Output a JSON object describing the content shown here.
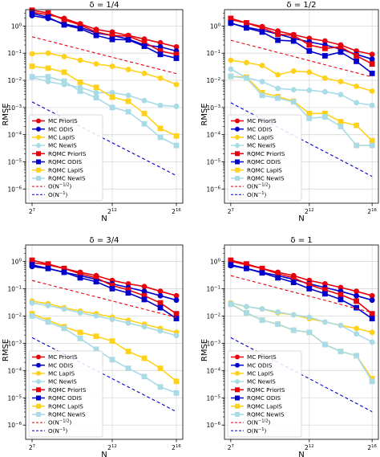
{
  "chart_data": [
    {
      "type": "line",
      "title": "δ = 1/4",
      "xlabel": "N",
      "ylabel": "RMSE",
      "x_scale": "log2",
      "y_scale": "log10",
      "xlim_log2": [
        6.6,
        16.4
      ],
      "ylim": [
        3e-07,
        4
      ],
      "x_ticks": [
        {
          "value": 7,
          "label": "2^7"
        },
        {
          "value": 12,
          "label": "2^12"
        },
        {
          "value": 16,
          "label": "2^16"
        }
      ],
      "y_ticks": [
        {
          "exp": 0,
          "label": "10^0"
        },
        {
          "exp": -1,
          "label": "10^-1"
        },
        {
          "exp": -2,
          "label": "10^-2"
        },
        {
          "exp": -3,
          "label": "10^-3"
        },
        {
          "exp": -4,
          "label": "10^-4"
        },
        {
          "exp": -5,
          "label": "10^-5"
        },
        {
          "exp": -6,
          "label": "10^-6"
        }
      ],
      "grid": true,
      "legend_position": "lower-left",
      "x_log2": [
        7,
        8,
        9,
        10,
        11,
        12,
        13,
        14,
        15,
        16
      ],
      "series": [
        {
          "name": "MC PriorIS",
          "color": "#e8000b",
          "marker": "circle",
          "values": [
            3.2,
            2.6,
            1.9,
            1.2,
            0.75,
            0.6,
            0.45,
            0.33,
            0.24,
            0.17
          ]
        },
        {
          "name": "MC ODIS",
          "color": "#0000cc",
          "marker": "circle",
          "values": [
            2.4,
            1.9,
            1.2,
            0.9,
            0.55,
            0.45,
            0.33,
            0.2,
            0.17,
            0.12
          ]
        },
        {
          "name": "MC LapIS",
          "color": "#ffd11a",
          "marker": "circle",
          "values": [
            0.095,
            0.1,
            0.075,
            0.055,
            0.04,
            0.033,
            0.025,
            0.018,
            0.012,
            0.007
          ]
        },
        {
          "name": "MC NewIS",
          "color": "#a8dbe6",
          "marker": "circle",
          "values": [
            0.013,
            0.009,
            0.007,
            0.0055,
            0.0035,
            0.0035,
            0.0028,
            0.0018,
            0.0012,
            0.0011
          ]
        },
        {
          "name": "RQMC PriorIS",
          "color": "#e8000b",
          "marker": "square",
          "values": [
            3.8,
            3.0,
            1.7,
            1.1,
            0.6,
            0.45,
            0.42,
            0.25,
            0.12,
            0.09
          ]
        },
        {
          "name": "RQMC ODIS",
          "color": "#0000cc",
          "marker": "square",
          "values": [
            2.9,
            2.1,
            1.1,
            0.8,
            0.45,
            0.32,
            0.31,
            0.18,
            0.09,
            0.065
          ]
        },
        {
          "name": "RQMC LapIS",
          "color": "#ffd11a",
          "marker": "square",
          "values": [
            0.033,
            0.028,
            0.02,
            0.0085,
            0.0055,
            0.0024,
            0.0017,
            0.0006,
            0.00017,
            9e-05
          ]
        },
        {
          "name": "RQMC NewIS",
          "color": "#a8dbe6",
          "marker": "square",
          "values": [
            0.0135,
            0.0135,
            0.0093,
            0.004,
            0.0023,
            0.001,
            0.0007,
            0.00025,
            8e-05,
            4e-05
          ]
        },
        {
          "name": "O(N^-1/2)",
          "color": "#e8000b",
          "style": "dashed",
          "values": [
            0.4,
            0.283,
            0.2,
            0.141,
            0.1,
            0.0707,
            0.05,
            0.0354,
            0.025,
            0.0177
          ]
        },
        {
          "name": "O(N^-1)",
          "color": "#0000cc",
          "style": "dashed",
          "values": [
            0.0016,
            0.0008,
            0.0004,
            0.0002,
            0.0001,
            5e-05,
            2.5e-05,
            1.25e-05,
            6.25e-06,
            3.1e-06
          ]
        }
      ]
    },
    {
      "type": "line",
      "title": "δ = 1/2",
      "xlabel": "N",
      "ylabel": "RMSE",
      "x_scale": "log2",
      "y_scale": "log10",
      "xlim_log2": [
        6.6,
        16.4
      ],
      "ylim": [
        3e-07,
        4
      ],
      "x_ticks": [
        {
          "value": 7,
          "label": "2^7"
        },
        {
          "value": 12,
          "label": "2^12"
        },
        {
          "value": 16,
          "label": "2^16"
        }
      ],
      "y_ticks": [
        {
          "exp": 0,
          "label": "10^0"
        },
        {
          "exp": -1,
          "label": "10^-1"
        },
        {
          "exp": -2,
          "label": "10^-2"
        },
        {
          "exp": -3,
          "label": "10^-3"
        },
        {
          "exp": -4,
          "label": "10^-4"
        },
        {
          "exp": -5,
          "label": "10^-5"
        },
        {
          "exp": -6,
          "label": "10^-6"
        }
      ],
      "grid": true,
      "legend_position": "lower-left",
      "x_log2": [
        7,
        8,
        9,
        10,
        11,
        12,
        13,
        14,
        15,
        16
      ],
      "series": [
        {
          "name": "MC PriorIS",
          "color": "#e8000b",
          "marker": "circle",
          "values": [
            1.7,
            1.3,
            0.95,
            0.65,
            0.48,
            0.35,
            0.28,
            0.2,
            0.12,
            0.09
          ]
        },
        {
          "name": "MC ODIS",
          "color": "#0000cc",
          "marker": "circle",
          "values": [
            1.25,
            0.9,
            0.7,
            0.5,
            0.35,
            0.26,
            0.2,
            0.14,
            0.09,
            0.06
          ]
        },
        {
          "name": "MC LapIS",
          "color": "#ffd11a",
          "marker": "circle",
          "values": [
            0.055,
            0.045,
            0.035,
            0.016,
            0.022,
            0.02,
            0.012,
            0.009,
            0.006,
            0.004
          ]
        },
        {
          "name": "MC NewIS",
          "color": "#a8dbe6",
          "marker": "circle",
          "values": [
            0.026,
            0.0125,
            0.009,
            0.005,
            0.0045,
            0.0043,
            0.0038,
            0.003,
            0.0015,
            0.0012
          ]
        },
        {
          "name": "RQMC PriorIS",
          "color": "#e8000b",
          "marker": "square",
          "values": [
            1.9,
            1.3,
            0.85,
            0.5,
            0.45,
            0.2,
            0.15,
            0.17,
            0.08,
            0.04
          ]
        },
        {
          "name": "RQMC ODIS",
          "color": "#0000cc",
          "marker": "square",
          "values": [
            1.3,
            0.85,
            0.6,
            0.3,
            0.28,
            0.12,
            0.08,
            0.11,
            0.05,
            0.018
          ]
        },
        {
          "name": "RQMC LapIS",
          "color": "#ffd11a",
          "marker": "square",
          "values": [
            0.014,
            0.013,
            0.0035,
            0.0025,
            0.0017,
            0.0006,
            0.0006,
            0.0003,
            0.00022,
            6e-05
          ]
        },
        {
          "name": "RQMC NewIS",
          "color": "#a8dbe6",
          "marker": "square",
          "values": [
            0.014,
            0.012,
            0.0028,
            0.0022,
            0.0016,
            0.0004,
            0.00045,
            0.0002,
            4e-05,
            4e-05
          ]
        },
        {
          "name": "O(N^-1/2)",
          "color": "#e8000b",
          "style": "dashed",
          "values": [
            0.3,
            0.212,
            0.15,
            0.106,
            0.075,
            0.053,
            0.0375,
            0.0265,
            0.0188,
            0.0133
          ]
        },
        {
          "name": "O(N^-1)",
          "color": "#0000cc",
          "style": "dashed",
          "values": [
            0.0015,
            0.00075,
            0.000375,
            0.000188,
            9.38e-05,
            4.69e-05,
            2.34e-05,
            1.17e-05,
            5.86e-06,
            2.9e-06
          ]
        }
      ]
    },
    {
      "type": "line",
      "title": "δ = 3/4",
      "xlabel": "N",
      "ylabel": "RMSE",
      "x_scale": "log2",
      "y_scale": "log10",
      "xlim_log2": [
        6.6,
        16.4
      ],
      "ylim": [
        3e-07,
        4
      ],
      "x_ticks": [
        {
          "value": 7,
          "label": "2^7"
        },
        {
          "value": 12,
          "label": "2^12"
        },
        {
          "value": 16,
          "label": "2^16"
        }
      ],
      "y_ticks": [
        {
          "exp": 0,
          "label": "10^0"
        },
        {
          "exp": -1,
          "label": "10^-1"
        },
        {
          "exp": -2,
          "label": "10^-2"
        },
        {
          "exp": -3,
          "label": "10^-3"
        },
        {
          "exp": -4,
          "label": "10^-4"
        },
        {
          "exp": -5,
          "label": "10^-5"
        },
        {
          "exp": -6,
          "label": "10^-6"
        }
      ],
      "grid": true,
      "legend_position": "lower-left",
      "x_log2": [
        7,
        8,
        9,
        10,
        11,
        12,
        13,
        14,
        15,
        16
      ],
      "series": [
        {
          "name": "MC PriorIS",
          "color": "#e8000b",
          "marker": "circle",
          "values": [
            0.9,
            0.75,
            0.55,
            0.4,
            0.3,
            0.2,
            0.15,
            0.12,
            0.08,
            0.055
          ]
        },
        {
          "name": "MC ODIS",
          "color": "#0000cc",
          "marker": "circle",
          "values": [
            0.65,
            0.55,
            0.4,
            0.3,
            0.22,
            0.15,
            0.11,
            0.08,
            0.055,
            0.038
          ]
        },
        {
          "name": "MC LapIS",
          "color": "#ffd11a",
          "marker": "circle",
          "values": [
            0.035,
            0.028,
            0.02,
            0.015,
            0.012,
            0.009,
            0.007,
            0.005,
            0.0035,
            0.0025
          ]
        },
        {
          "name": "MC NewIS",
          "color": "#a8dbe6",
          "marker": "circle",
          "values": [
            0.03,
            0.024,
            0.018,
            0.013,
            0.01,
            0.0075,
            0.0055,
            0.004,
            0.0028,
            0.0019
          ]
        },
        {
          "name": "RQMC PriorIS",
          "color": "#e8000b",
          "marker": "square",
          "values": [
            1.1,
            0.8,
            0.55,
            0.35,
            0.25,
            0.13,
            0.09,
            0.055,
            0.03,
            0.012
          ]
        },
        {
          "name": "RQMC ODIS",
          "color": "#0000cc",
          "marker": "square",
          "values": [
            0.75,
            0.55,
            0.4,
            0.25,
            0.18,
            0.1,
            0.07,
            0.04,
            0.02,
            0.008
          ]
        },
        {
          "name": "RQMC LapIS",
          "color": "#ffd11a",
          "marker": "square",
          "values": [
            0.012,
            0.007,
            0.004,
            0.0025,
            0.0018,
            0.0012,
            0.0005,
            0.00028,
            0.00012,
            4e-05
          ]
        },
        {
          "name": "RQMC NewIS",
          "color": "#a8dbe6",
          "marker": "square",
          "values": [
            0.01,
            0.006,
            0.0035,
            0.0015,
            0.0006,
            0.00025,
            0.00012,
            6e-05,
            2.5e-05,
            1.5e-05
          ]
        },
        {
          "name": "O(N^-1/2)",
          "color": "#e8000b",
          "style": "dashed",
          "values": [
            0.2,
            0.141,
            0.1,
            0.0707,
            0.05,
            0.0354,
            0.025,
            0.0177,
            0.0125,
            0.0088
          ]
        },
        {
          "name": "O(N^-1)",
          "color": "#0000cc",
          "style": "dashed",
          "values": [
            0.0016,
            0.0008,
            0.0004,
            0.0002,
            0.0001,
            5e-05,
            2.5e-05,
            1.25e-05,
            6.25e-06,
            3.1e-06
          ]
        }
      ]
    },
    {
      "type": "line",
      "title": "δ = 1",
      "xlabel": "N",
      "ylabel": "RMSE",
      "x_scale": "log2",
      "y_scale": "log10",
      "xlim_log2": [
        6.6,
        16.4
      ],
      "ylim": [
        3e-07,
        4
      ],
      "x_ticks": [
        {
          "value": 7,
          "label": "2^7"
        },
        {
          "value": 12,
          "label": "2^12"
        },
        {
          "value": 16,
          "label": "2^16"
        }
      ],
      "y_ticks": [
        {
          "exp": 0,
          "label": "10^0"
        },
        {
          "exp": -1,
          "label": "10^-1"
        },
        {
          "exp": -2,
          "label": "10^-2"
        },
        {
          "exp": -3,
          "label": "10^-3"
        },
        {
          "exp": -4,
          "label": "10^-4"
        },
        {
          "exp": -5,
          "label": "10^-5"
        },
        {
          "exp": -6,
          "label": "10^-6"
        }
      ],
      "grid": true,
      "legend_position": "lower-left",
      "x_log2": [
        7,
        8,
        9,
        10,
        11,
        12,
        13,
        14,
        15,
        16
      ],
      "series": [
        {
          "name": "MC PriorIS",
          "color": "#e8000b",
          "marker": "circle",
          "values": [
            1.0,
            0.75,
            0.55,
            0.4,
            0.3,
            0.2,
            0.15,
            0.11,
            0.08,
            0.055
          ]
        },
        {
          "name": "MC ODIS",
          "color": "#0000cc",
          "marker": "circle",
          "values": [
            0.7,
            0.55,
            0.4,
            0.3,
            0.22,
            0.15,
            0.11,
            0.08,
            0.055,
            0.038
          ]
        },
        {
          "name": "MC LapIS",
          "color": "#ffd11a",
          "marker": "circle",
          "values": [
            0.03,
            0.022,
            0.018,
            0.013,
            0.011,
            0.008,
            0.006,
            0.0045,
            0.0035,
            0.0025
          ]
        },
        {
          "name": "MC NewIS",
          "color": "#a8dbe6",
          "marker": "circle",
          "values": [
            0.03,
            0.022,
            0.018,
            0.014,
            0.011,
            0.009,
            0.006,
            0.0045,
            0.0022,
            0.0011
          ]
        },
        {
          "name": "RQMC PriorIS",
          "color": "#e8000b",
          "marker": "square",
          "values": [
            1.1,
            0.8,
            0.55,
            0.35,
            0.25,
            0.14,
            0.09,
            0.06,
            0.035,
            0.012
          ]
        },
        {
          "name": "RQMC ODIS",
          "color": "#0000cc",
          "marker": "square",
          "values": [
            0.75,
            0.55,
            0.38,
            0.25,
            0.17,
            0.1,
            0.065,
            0.04,
            0.02,
            0.008
          ]
        },
        {
          "name": "RQMC LapIS",
          "color": "#ffd11a",
          "marker": "square",
          "values": [
            0.028,
            0.013,
            0.007,
            0.005,
            0.003,
            0.0025,
            0.0009,
            0.0005,
            0.00035,
            5e-05
          ]
        },
        {
          "name": "RQMC NewIS",
          "color": "#a8dbe6",
          "marker": "square",
          "values": [
            0.027,
            0.013,
            0.007,
            0.005,
            0.003,
            0.0025,
            0.0009,
            0.0005,
            0.00035,
            4e-05
          ]
        },
        {
          "name": "O(N^-1/2)",
          "color": "#e8000b",
          "style": "dashed",
          "values": [
            0.3,
            0.212,
            0.15,
            0.106,
            0.075,
            0.053,
            0.0375,
            0.0265,
            0.0188,
            0.0133
          ]
        },
        {
          "name": "O(N^-1)",
          "color": "#0000cc",
          "style": "dashed",
          "values": [
            0.0016,
            0.0008,
            0.0004,
            0.0002,
            0.0001,
            5e-05,
            2.5e-05,
            1.25e-05,
            6.25e-06,
            3.1e-06
          ]
        }
      ]
    }
  ]
}
